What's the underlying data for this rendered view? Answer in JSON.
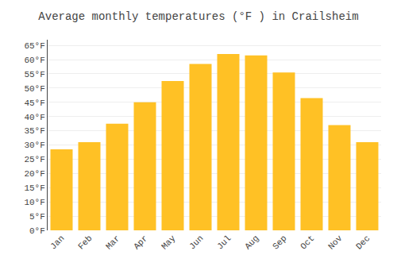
{
  "chart_data": {
    "type": "bar",
    "title": "Average monthly temperatures (°F ) in Crailsheim",
    "categories": [
      "Jan",
      "Feb",
      "Mar",
      "Apr",
      "May",
      "Jun",
      "Jul",
      "Aug",
      "Sep",
      "Oct",
      "Nov",
      "Dec"
    ],
    "values": [
      28.5,
      31.0,
      37.5,
      45.0,
      52.5,
      58.5,
      62.0,
      61.5,
      55.5,
      46.5,
      37.0,
      31.0
    ],
    "color": "#FFC125",
    "ylim": [
      0,
      67
    ],
    "yticks": [
      {
        "value": 0,
        "label": "0°F"
      },
      {
        "value": 5,
        "label": "5°F"
      },
      {
        "value": 10,
        "label": "10°F"
      },
      {
        "value": 15,
        "label": "15°F"
      },
      {
        "value": 20,
        "label": "20°F"
      },
      {
        "value": 25,
        "label": "25°F"
      },
      {
        "value": 30,
        "label": "30°F"
      },
      {
        "value": 35,
        "label": "35°F"
      },
      {
        "value": 40,
        "label": "40°F"
      },
      {
        "value": 45,
        "label": "45°F"
      },
      {
        "value": 50,
        "label": "50°F"
      },
      {
        "value": 55,
        "label": "55°F"
      },
      {
        "value": 60,
        "label": "60°F"
      },
      {
        "value": 65,
        "label": "65°F"
      }
    ],
    "grid": true
  }
}
